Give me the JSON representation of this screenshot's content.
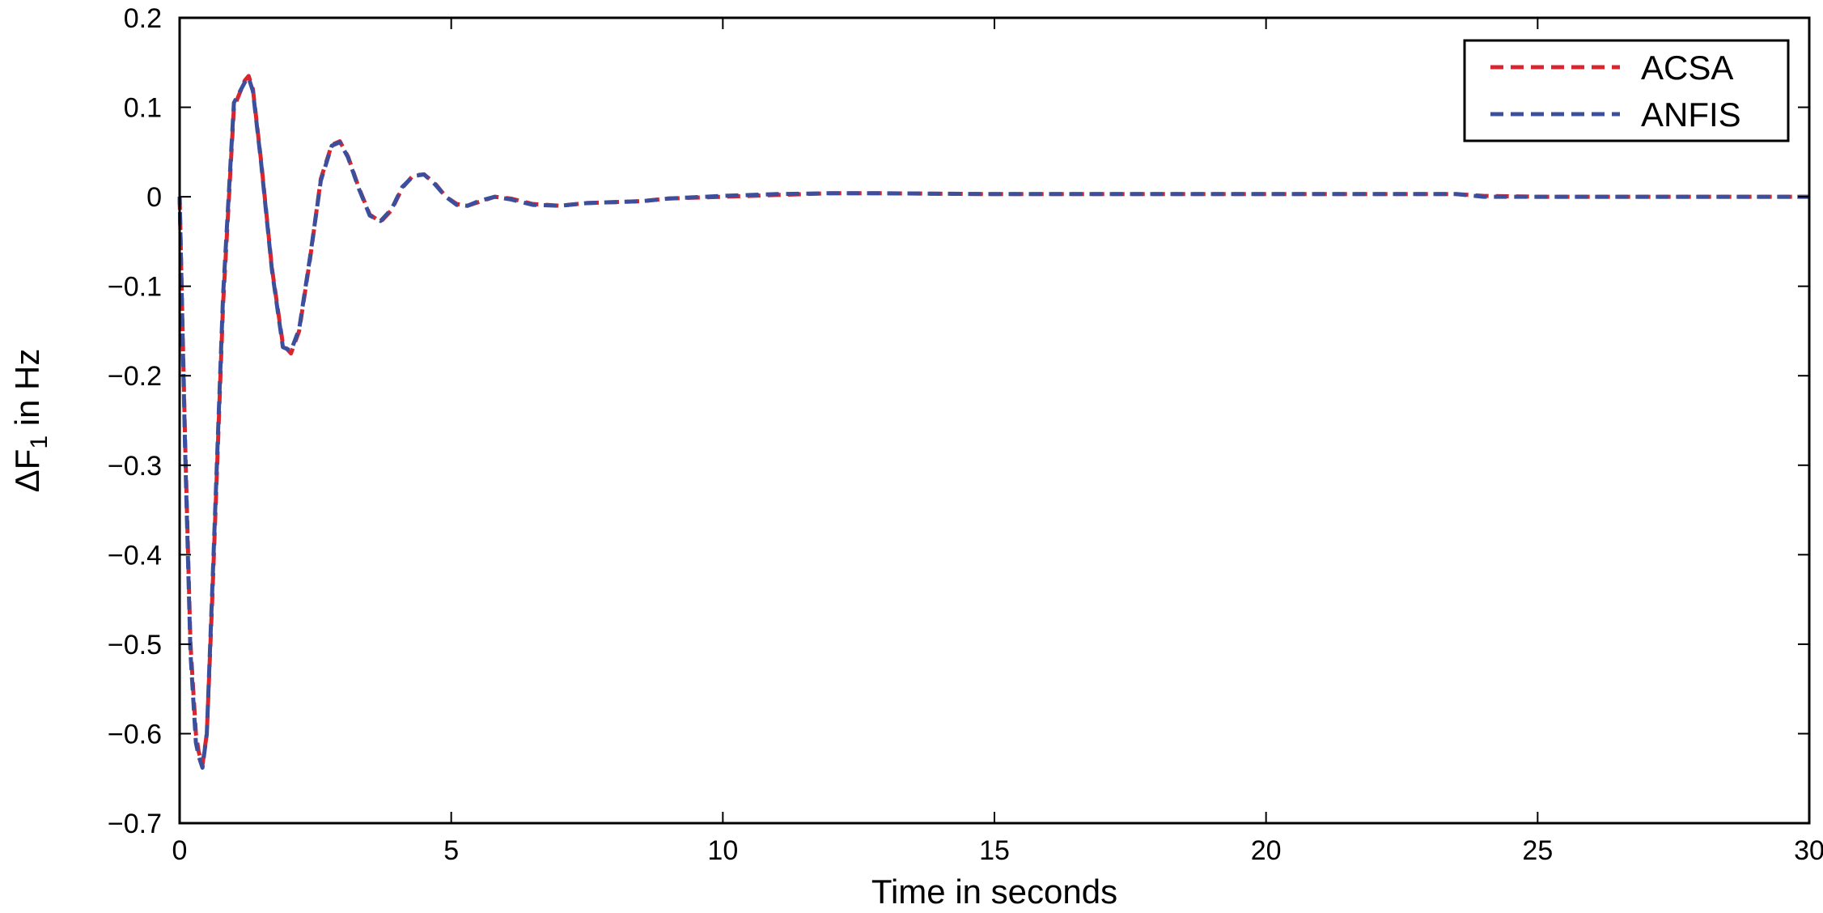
{
  "chart_data": {
    "type": "line",
    "xlabel": "Time in seconds",
    "ylabel": {
      "prefix": "ΔF",
      "subscript": "1",
      "suffix": " in Hz"
    },
    "xlim": [
      0,
      30
    ],
    "ylim": [
      -0.7,
      0.2
    ],
    "xticks": [
      0,
      5,
      10,
      15,
      20,
      25,
      30
    ],
    "xtick_labels": [
      "0",
      "5",
      "10",
      "15",
      "20",
      "25",
      "30"
    ],
    "yticks": [
      0.2,
      0.1,
      0,
      -0.1,
      -0.2,
      -0.3,
      -0.4,
      -0.5,
      -0.6,
      -0.7
    ],
    "ytick_labels": [
      "0.2",
      "0.1",
      "0",
      "−0.1",
      "−0.2",
      "−0.3",
      "−0.4",
      "−0.5",
      "−0.6",
      "−0.7"
    ],
    "grid": false,
    "legend_position": "top-right",
    "series": [
      {
        "name": "ACSA",
        "color": "#d9262e",
        "style": "dashed",
        "x": [
          0,
          0.1,
          0.2,
          0.3,
          0.35,
          0.42,
          0.5,
          0.6,
          0.8,
          1.0,
          1.2,
          1.27,
          1.35,
          1.5,
          1.7,
          1.9,
          2.05,
          2.2,
          2.4,
          2.6,
          2.8,
          2.95,
          3.1,
          3.3,
          3.5,
          3.7,
          3.9,
          4.1,
          4.3,
          4.5,
          4.7,
          4.9,
          5.1,
          5.3,
          5.5,
          5.8,
          6.1,
          6.5,
          7.0,
          7.5,
          8.0,
          8.5,
          9.0,
          10.0,
          11.0,
          12.0,
          12.7,
          15.0,
          20.0,
          23.5,
          24.0,
          25.0,
          30.0
        ],
        "y": [
          0,
          -0.27,
          -0.5,
          -0.6,
          -0.62,
          -0.635,
          -0.6,
          -0.45,
          -0.12,
          0.1,
          0.13,
          0.135,
          0.12,
          0.04,
          -0.08,
          -0.165,
          -0.175,
          -0.15,
          -0.07,
          0.02,
          0.058,
          0.062,
          0.045,
          0.01,
          -0.02,
          -0.028,
          -0.015,
          0.01,
          0.024,
          0.025,
          0.015,
          0.0,
          -0.008,
          -0.01,
          -0.006,
          0.0,
          -0.002,
          -0.008,
          -0.01,
          -0.007,
          -0.006,
          -0.005,
          -0.002,
          0.0,
          0.002,
          0.004,
          0.004,
          0.003,
          0.003,
          0.003,
          0.001,
          0.0,
          0.0
        ]
      },
      {
        "name": "ANFIS",
        "color": "#3c4f9c",
        "style": "dashed",
        "x": [
          0,
          0.1,
          0.2,
          0.3,
          0.35,
          0.42,
          0.5,
          0.6,
          0.8,
          1.0,
          1.2,
          1.27,
          1.35,
          1.5,
          1.7,
          1.9,
          2.05,
          2.2,
          2.4,
          2.6,
          2.8,
          2.95,
          3.1,
          3.3,
          3.5,
          3.7,
          3.9,
          4.1,
          4.3,
          4.5,
          4.7,
          4.9,
          5.1,
          5.3,
          5.5,
          5.8,
          6.1,
          6.5,
          7.0,
          7.5,
          8.0,
          8.5,
          9.0,
          10.0,
          11.0,
          12.0,
          12.7,
          15.0,
          20.0,
          23.5,
          24.0,
          25.0,
          30.0
        ],
        "y": [
          0,
          -0.28,
          -0.51,
          -0.61,
          -0.625,
          -0.638,
          -0.6,
          -0.44,
          -0.11,
          0.105,
          0.128,
          0.133,
          0.118,
          0.038,
          -0.082,
          -0.168,
          -0.172,
          -0.148,
          -0.068,
          0.018,
          0.057,
          0.061,
          0.044,
          0.009,
          -0.021,
          -0.027,
          -0.014,
          0.011,
          0.023,
          0.025,
          0.014,
          0.0,
          -0.009,
          -0.01,
          -0.005,
          0.0,
          -0.003,
          -0.009,
          -0.01,
          -0.007,
          -0.006,
          -0.005,
          -0.002,
          0.001,
          0.003,
          0.004,
          0.004,
          0.003,
          0.003,
          0.003,
          0.0,
          0.0,
          0.0
        ]
      }
    ]
  }
}
